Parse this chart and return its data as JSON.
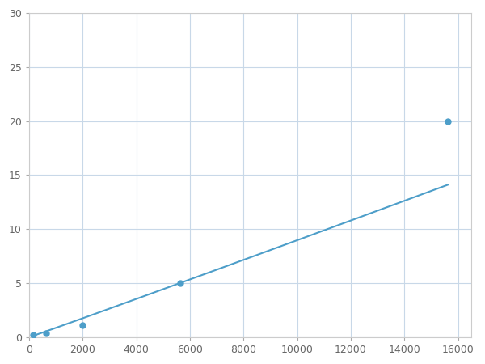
{
  "x_points": [
    156,
    625,
    2000,
    5625,
    15625
  ],
  "y_points": [
    0.2,
    0.4,
    1.1,
    5.0,
    20.0
  ],
  "line_color": "#4d9ec9",
  "marker_color": "#4d9ec9",
  "marker_size": 5,
  "line_width": 1.5,
  "xlim": [
    0,
    16500
  ],
  "ylim": [
    0,
    30
  ],
  "xticks": [
    0,
    2000,
    4000,
    6000,
    8000,
    10000,
    12000,
    14000,
    16000
  ],
  "yticks": [
    0,
    5,
    10,
    15,
    20,
    25,
    30
  ],
  "grid_color": "#c8d8e8",
  "background_color": "#ffffff",
  "figure_background": "#ffffff"
}
